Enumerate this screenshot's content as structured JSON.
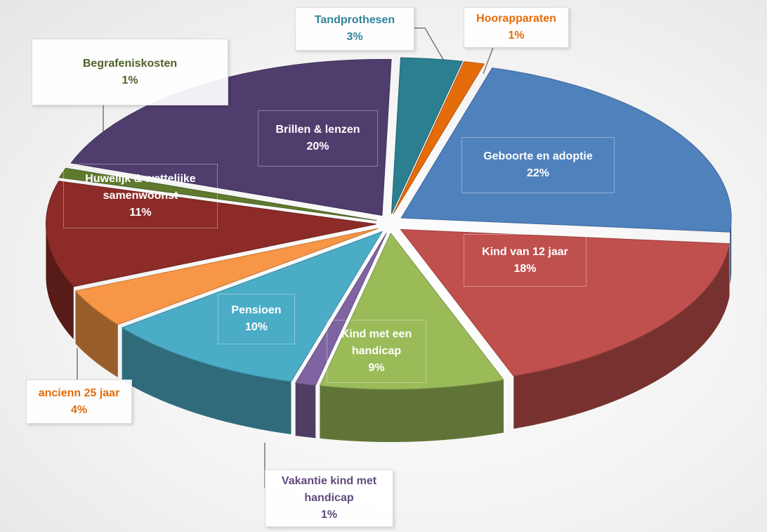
{
  "chart_data": {
    "type": "pie3d",
    "categories": [
      "Geboorte en adoptie",
      "Kind van 12 jaar",
      "Kind met een handicap",
      "Vakantie kind met handicap",
      "Pensioen",
      "ancienn 25 jaar",
      "Huwelijk & wettelijke samenwoonst",
      "Begrafeniskosten",
      "Brillen & lenzen",
      "Tandprothesen",
      "Hoorapparaten"
    ],
    "values": [
      22,
      18,
      9,
      1,
      10,
      4,
      11,
      1,
      20,
      3,
      1
    ],
    "value_labels": [
      "22%",
      "18%",
      "9%",
      "1%",
      "10%",
      "4%",
      "11%",
      "1%",
      "20%",
      "3%",
      "1%"
    ],
    "colors": [
      "#4f81bd",
      "#c0504d",
      "#9bbb59",
      "#8064a2",
      "#4bacc6",
      "#f79646",
      "#8c2b27",
      "#5f7a2e",
      "#4f3d6e",
      "#2b7f90",
      "#e46c0a"
    ]
  }
}
